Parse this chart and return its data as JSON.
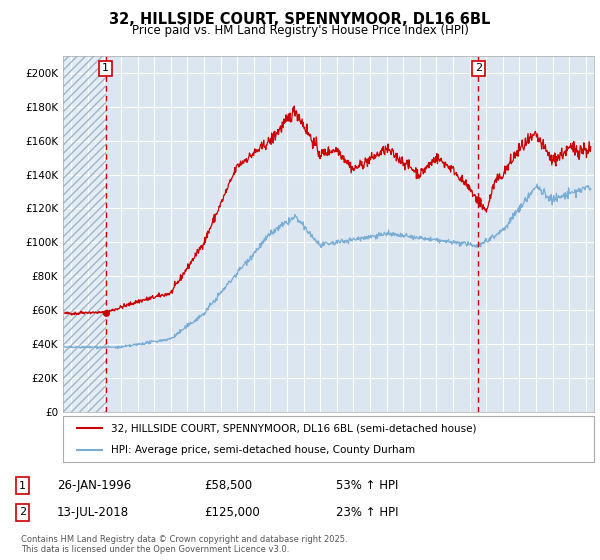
{
  "title": "32, HILLSIDE COURT, SPENNYMOOR, DL16 6BL",
  "subtitle": "Price paid vs. HM Land Registry's House Price Index (HPI)",
  "background_color": "#dce6f1",
  "plot_bg_color": "#dce6f1",
  "hatch_color": "#aabbd0",
  "red_line_color": "#cc0000",
  "blue_line_color": "#7aadd4",
  "marker_color": "#cc0000",
  "vline_color": "#cc0000",
  "ylim": [
    0,
    210000
  ],
  "yticks": [
    0,
    20000,
    40000,
    60000,
    80000,
    100000,
    120000,
    140000,
    160000,
    180000,
    200000
  ],
  "ytick_labels": [
    "£0",
    "£20K",
    "£40K",
    "£60K",
    "£80K",
    "£100K",
    "£120K",
    "£140K",
    "£160K",
    "£180K",
    "£200K"
  ],
  "sale1_year": 1996.07,
  "sale1_price": 58500,
  "sale1_label": "1",
  "sale1_date": "26-JAN-1996",
  "sale1_price_str": "£58,500",
  "sale1_pct": "53% ↑ HPI",
  "sale2_year": 2018.53,
  "sale2_price": 125000,
  "sale2_label": "2",
  "sale2_date": "13-JUL-2018",
  "sale2_price_str": "£125,000",
  "sale2_pct": "23% ↑ HPI",
  "legend_line1": "32, HILLSIDE COURT, SPENNYMOOR, DL16 6BL (semi-detached house)",
  "legend_line2": "HPI: Average price, semi-detached house, County Durham",
  "footnote": "Contains HM Land Registry data © Crown copyright and database right 2025.\nThis data is licensed under the Open Government Licence v3.0.",
  "xstart": 1993.5,
  "xend": 2025.5
}
